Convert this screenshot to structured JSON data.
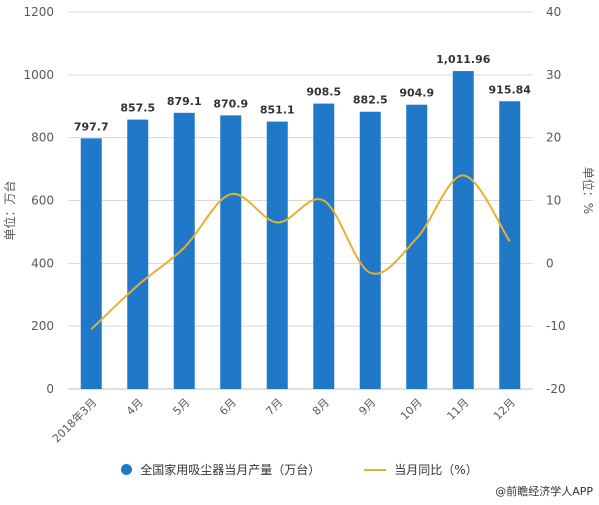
{
  "chart_data": {
    "type": "bar+line",
    "categories": [
      "2018年3月",
      "4月",
      "5月",
      "6月",
      "7月",
      "8月",
      "9月",
      "10月",
      "11月",
      "12月"
    ],
    "bar_series": {
      "name": "全国家用吸尘器当月产量（万台）",
      "values": [
        797.7,
        857.5,
        879.1,
        870.9,
        851.1,
        908.5,
        882.5,
        904.9,
        1011.96,
        915.84
      ],
      "labels": [
        "797.7",
        "857.5",
        "879.1",
        "870.9",
        "851.1",
        "908.5",
        "882.5",
        "904.9",
        "1,011.96",
        "915.84"
      ],
      "color": "#1f78c8"
    },
    "line_series": {
      "name": "当月同比（%）",
      "values": [
        -10.5,
        -3.5,
        2.5,
        11,
        6.5,
        10,
        -1.5,
        4,
        14,
        3.5
      ],
      "color": "#e6b030"
    },
    "y_left": {
      "label": "单位：万台",
      "min": 0,
      "max": 1200,
      "ticks": [
        0,
        200,
        400,
        600,
        800,
        1000,
        1200
      ]
    },
    "y_right": {
      "label": "单位：%",
      "min": -20,
      "max": 40,
      "ticks": [
        -20,
        -10,
        0,
        10,
        20,
        30,
        40
      ]
    },
    "grid": true,
    "legend_position": "bottom"
  },
  "source": "@前瞻经济学人APP"
}
